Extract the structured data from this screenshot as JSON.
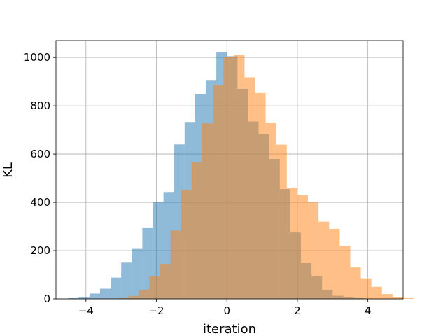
{
  "chart_data": {
    "type": "bar",
    "title": "",
    "xlabel": "iteration",
    "ylabel": "KL",
    "xlim": [
      -4.85,
      5.0
    ],
    "ylim": [
      0,
      1070
    ],
    "xticks": [
      -4,
      -2,
      0,
      2,
      4
    ],
    "xtick_labels": [
      "−4",
      "−2",
      "0",
      "2",
      "4"
    ],
    "yticks": [
      0,
      200,
      400,
      600,
      800,
      1000
    ],
    "ytick_labels": [
      "0",
      "200",
      "400",
      "600",
      "800",
      "1000"
    ],
    "grid": true,
    "legend": "none",
    "series": [
      {
        "color": "#1f77b4",
        "opacity": 0.5,
        "bin_start": -4.5,
        "bin_width": 0.3,
        "values": [
          3,
          8,
          22,
          42,
          88,
          150,
          207,
          296,
          402,
          443,
          640,
          733,
          848,
          904,
          1023,
          1005,
          870,
          735,
          682,
          580,
          455,
          275,
          148,
          93,
          37,
          13,
          7,
          3
        ]
      },
      {
        "color": "#ff7f0e",
        "opacity": 0.5,
        "bin_start": -3.1,
        "bin_width": 0.3,
        "values": [
          3,
          12,
          38,
          93,
          145,
          283,
          450,
          565,
          727,
          885,
          1003,
          1010,
          918,
          853,
          730,
          639,
          460,
          430,
          402,
          320,
          290,
          220,
          130,
          85,
          50,
          20,
          8,
          3
        ]
      }
    ]
  }
}
